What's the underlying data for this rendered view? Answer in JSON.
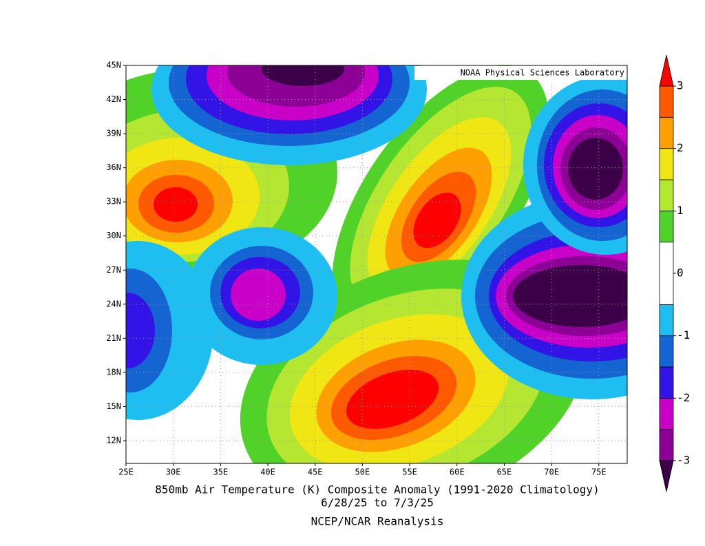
{
  "map": {
    "title": "850mb Air Temperature (K) Composite Anomaly (1991-2020 Climatology)",
    "date_range": "6/28/25  to 7/3/25",
    "source": "NCEP/NCAR Reanalysis",
    "credit": "NOAA Physical Sciences Laboratory",
    "xlim": [
      25,
      78
    ],
    "ylim": [
      10,
      45
    ],
    "xticks": [
      {
        "value": 25,
        "label": "25E"
      },
      {
        "value": 30,
        "label": "30E"
      },
      {
        "value": 35,
        "label": "35E"
      },
      {
        "value": 40,
        "label": "40E"
      },
      {
        "value": 45,
        "label": "45E"
      },
      {
        "value": 50,
        "label": "50E"
      },
      {
        "value": 55,
        "label": "55E"
      },
      {
        "value": 60,
        "label": "60E"
      },
      {
        "value": 65,
        "label": "65E"
      },
      {
        "value": 70,
        "label": "70E"
      },
      {
        "value": 75,
        "label": "75E"
      }
    ],
    "yticks": [
      {
        "value": 12,
        "label": "12N"
      },
      {
        "value": 15,
        "label": "15N"
      },
      {
        "value": 18,
        "label": "18N"
      },
      {
        "value": 21,
        "label": "21N"
      },
      {
        "value": 24,
        "label": "24N"
      },
      {
        "value": 27,
        "label": "27N"
      },
      {
        "value": 30,
        "label": "30N"
      },
      {
        "value": 33,
        "label": "33N"
      },
      {
        "value": 36,
        "label": "36N"
      },
      {
        "value": 39,
        "label": "39N"
      },
      {
        "value": 42,
        "label": "42N"
      },
      {
        "value": 45,
        "label": "45N"
      }
    ],
    "grid": true,
    "colorbar": {
      "lim": [
        -3,
        3
      ],
      "ticks": [
        -3,
        -2,
        -1,
        0,
        1,
        2,
        3
      ],
      "levels": [
        -3,
        -2.5,
        -2,
        -1.5,
        -1,
        -0.5,
        0.5,
        1,
        1.5,
        2,
        2.5,
        3
      ],
      "colors": [
        "#3c0048",
        "#8c0096",
        "#c800c8",
        "#3214e6",
        "#1464d2",
        "#1ebef0",
        "#ffffff",
        "#50d228",
        "#b4e632",
        "#f0e614",
        "#ffa000",
        "#ff5a00",
        "#ff0000"
      ]
    }
  }
}
